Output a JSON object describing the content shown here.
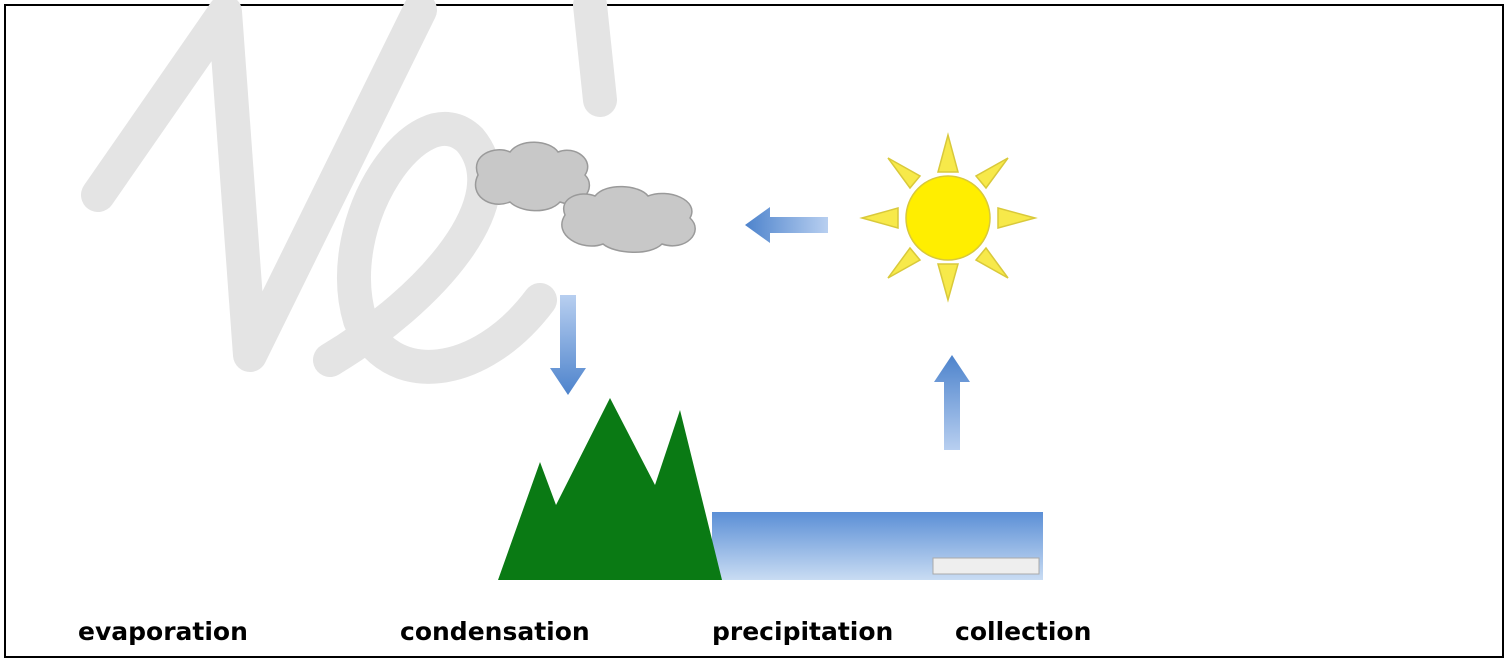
{
  "words": [
    "evaporation",
    "condensation",
    "precipitation",
    "collection"
  ]
}
